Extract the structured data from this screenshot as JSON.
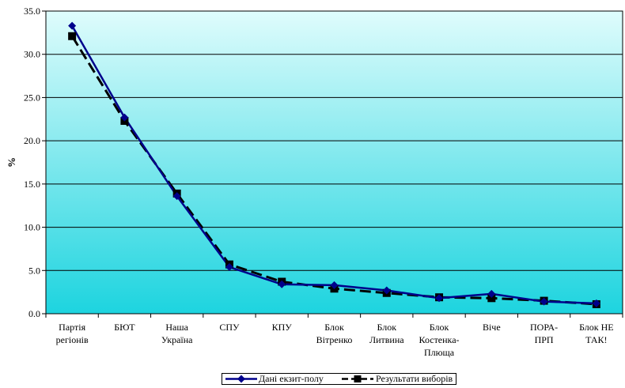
{
  "chart_data": {
    "type": "line",
    "title": "",
    "xlabel": "",
    "ylabel": "%",
    "ylim": [
      0,
      35
    ],
    "yticks": [
      "0.0",
      "5.0",
      "10.0",
      "15.0",
      "20.0",
      "25.0",
      "30.0",
      "35.0"
    ],
    "categories": [
      [
        "Партія",
        "регіонів"
      ],
      [
        "БЮТ"
      ],
      [
        "Наша",
        "Україна"
      ],
      [
        "СПУ"
      ],
      [
        "КПУ"
      ],
      [
        "Блок",
        "Вітренко"
      ],
      [
        "Блок",
        "Литвина"
      ],
      [
        "Блок",
        "Костенка-",
        "Плюща"
      ],
      [
        "Віче"
      ],
      [
        "ПОРА-",
        "ПРП"
      ],
      [
        "Блок НЕ",
        "ТАК!"
      ]
    ],
    "series": [
      {
        "name": "Дані екзит-полу",
        "color": "#00008B",
        "marker": "diamond",
        "values": [
          33.3,
          22.7,
          13.6,
          5.4,
          3.4,
          3.3,
          2.7,
          1.8,
          2.3,
          1.4,
          1.2
        ]
      },
      {
        "name": "Результати виборів",
        "color": "#000000",
        "marker": "square",
        "dashed": true,
        "values": [
          32.1,
          22.3,
          13.9,
          5.7,
          3.7,
          2.9,
          2.4,
          1.9,
          1.8,
          1.5,
          1.1
        ]
      }
    ],
    "grid": true,
    "plot_background": "gradient-light-cyan",
    "legend_position": "bottom"
  }
}
